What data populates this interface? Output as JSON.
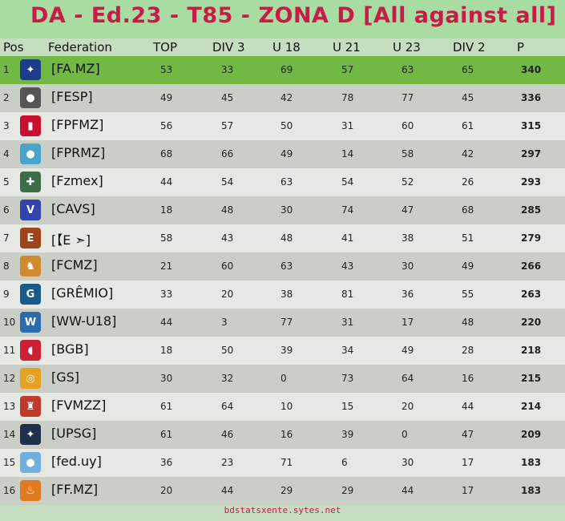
{
  "title": "DA - Ed.23 - T85 - ZONA D  [All against all]",
  "columns": {
    "pos": "Pos",
    "federation": "Federation",
    "top": "TOP",
    "div3": "DIV 3",
    "u18": "U 18",
    "u21": "U 21",
    "u23": "U 23",
    "div2": "DIV 2",
    "p": "P"
  },
  "rows": [
    {
      "pos": "1",
      "federation": "[FA.MZ]",
      "top": "53",
      "div3": "33",
      "u18": "69",
      "u21": "57",
      "u23": "63",
      "div2": "65",
      "p": "340",
      "logo_color": "#1d3c8c",
      "logo_glyph": "✦"
    },
    {
      "pos": "2",
      "federation": "[FESP]",
      "top": "49",
      "div3": "45",
      "u18": "42",
      "u21": "78",
      "u23": "77",
      "div2": "45",
      "p": "336",
      "logo_color": "#555555",
      "logo_glyph": "●"
    },
    {
      "pos": "3",
      "federation": "[FPFMZ]",
      "top": "56",
      "div3": "57",
      "u18": "50",
      "u21": "31",
      "u23": "60",
      "div2": "61",
      "p": "315",
      "logo_color": "#c8102e",
      "logo_glyph": "▮"
    },
    {
      "pos": "4",
      "federation": "[FPRMZ]",
      "top": "68",
      "div3": "66",
      "u18": "49",
      "u21": "14",
      "u23": "58",
      "div2": "42",
      "p": "297",
      "logo_color": "#4aa3c8",
      "logo_glyph": "●"
    },
    {
      "pos": "5",
      "federation": "[Fzmex]",
      "top": "44",
      "div3": "54",
      "u18": "63",
      "u21": "54",
      "u23": "52",
      "div2": "26",
      "p": "293",
      "logo_color": "#3c6e4a",
      "logo_glyph": "✚"
    },
    {
      "pos": "6",
      "federation": "[CAVS]",
      "top": "18",
      "div3": "48",
      "u18": "30",
      "u21": "74",
      "u23": "47",
      "div2": "68",
      "p": "285",
      "logo_color": "#3344aa",
      "logo_glyph": "V"
    },
    {
      "pos": "7",
      "federation": "[【E ➣]",
      "top": "58",
      "div3": "43",
      "u18": "48",
      "u21": "41",
      "u23": "38",
      "div2": "51",
      "p": "279",
      "logo_color": "#a0421a",
      "logo_glyph": "E"
    },
    {
      "pos": "8",
      "federation": "[FCMZ]",
      "top": "21",
      "div3": "60",
      "u18": "63",
      "u21": "43",
      "u23": "30",
      "div2": "49",
      "p": "266",
      "logo_color": "#d08a30",
      "logo_glyph": "♞"
    },
    {
      "pos": "9",
      "federation": "[GRÊMIO]",
      "top": "33",
      "div3": "20",
      "u18": "38",
      "u21": "81",
      "u23": "36",
      "div2": "55",
      "p": "263",
      "logo_color": "#1a5a8a",
      "logo_glyph": "G"
    },
    {
      "pos": "10",
      "federation": "[WW-U18]",
      "top": "44",
      "div3": "3",
      "u18": "77",
      "u21": "31",
      "u23": "17",
      "div2": "48",
      "p": "220",
      "logo_color": "#2b6cb0",
      "logo_glyph": "W"
    },
    {
      "pos": "11",
      "federation": "[BGB]",
      "top": "18",
      "div3": "50",
      "u18": "39",
      "u21": "34",
      "u23": "49",
      "div2": "28",
      "p": "218",
      "logo_color": "#cc2233",
      "logo_glyph": "◖"
    },
    {
      "pos": "12",
      "federation": "[GS]",
      "top": "30",
      "div3": "32",
      "u18": "0",
      "u21": "73",
      "u23": "64",
      "div2": "16",
      "p": "215",
      "logo_color": "#e8a020",
      "logo_glyph": "◎"
    },
    {
      "pos": "13",
      "federation": "[FVMZZ]",
      "top": "61",
      "div3": "64",
      "u18": "10",
      "u21": "15",
      "u23": "20",
      "div2": "44",
      "p": "214",
      "logo_color": "#c03a2a",
      "logo_glyph": "♜"
    },
    {
      "pos": "14",
      "federation": "[UPSG]",
      "top": "61",
      "div3": "46",
      "u18": "16",
      "u21": "39",
      "u23": "0",
      "div2": "47",
      "p": "209",
      "logo_color": "#20304a",
      "logo_glyph": "✦"
    },
    {
      "pos": "15",
      "federation": "[fed.uy]",
      "top": "36",
      "div3": "23",
      "u18": "71",
      "u21": "6",
      "u23": "30",
      "div2": "17",
      "p": "183",
      "logo_color": "#6fb0e0",
      "logo_glyph": "●"
    },
    {
      "pos": "16",
      "federation": "[FF.MZ]",
      "top": "20",
      "div3": "44",
      "u18": "29",
      "u21": "29",
      "u23": "44",
      "div2": "17",
      "p": "183",
      "logo_color": "#e07a20",
      "logo_glyph": "♨"
    }
  ],
  "footer": "bdstatsxente.sytes.net",
  "colors": {
    "title": "#c81b45",
    "leader_row": "#71b845",
    "odd_row": "#e6e8e3",
    "even_row": "#c9cfc7"
  }
}
